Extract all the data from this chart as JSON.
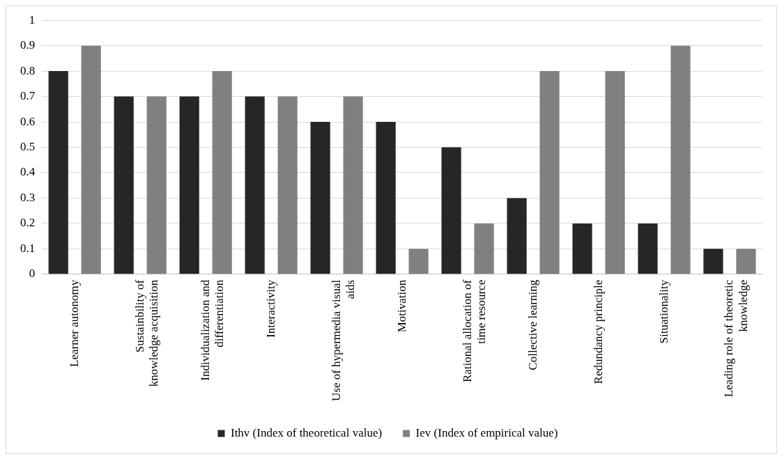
{
  "chart_data": {
    "type": "bar",
    "categories": [
      "Learner autonomy",
      "Sustainbility of knowledge acquisition",
      "Individualization and differentiation",
      "Interactivity",
      "Use of hypermedia visual aids",
      "Motivation",
      "Rational allocation of time resource",
      "Collective learning",
      "Redundancy principle",
      "Situationality",
      "Leading role of theoretic knowledge"
    ],
    "series": [
      {
        "name": "Ithv (Index of theoretical value)",
        "color": "#262626",
        "values": [
          0.8,
          0.7,
          0.7,
          0.7,
          0.6,
          0.6,
          0.5,
          0.3,
          0.2,
          0.2,
          0.1
        ]
      },
      {
        "name": "Iev (Index of empirical value)",
        "color": "#808080",
        "values": [
          0.9,
          0.7,
          0.8,
          0.7,
          0.7,
          0.1,
          0.2,
          0.8,
          0.8,
          0.9,
          0.1
        ]
      }
    ],
    "ylim": [
      0,
      1
    ],
    "yticks": [
      0,
      0.1,
      0.2,
      0.3,
      0.4,
      0.5,
      0.6,
      0.7,
      0.8,
      0.9,
      1
    ],
    "grid": "y",
    "legend": "bottom"
  }
}
